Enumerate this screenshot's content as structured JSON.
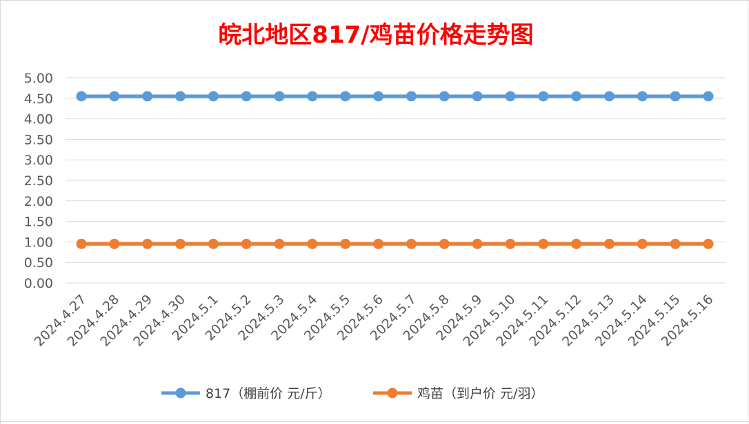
{
  "colors": {
    "title": "#ff0000",
    "series_817": "#5b9bd5",
    "series_chick": "#ed7d31",
    "gridline": "#d9d9d9",
    "axis_text": "#595959"
  },
  "chart_data": {
    "type": "line",
    "title": "皖北地区817/鸡苗价格走势图",
    "xlabel": "",
    "ylabel": "",
    "categories": [
      "2024.4.27",
      "2024.4.28",
      "2024.4.29",
      "2024.4.30",
      "2024.5.1",
      "2024.5.2",
      "2024.5.3",
      "2024.5.4",
      "2024.5.5",
      "2024.5.6",
      "2024.5.7",
      "2024.5.8",
      "2024.5.9",
      "2024.5.10",
      "2024.5.11",
      "2024.5.12",
      "2024.5.13",
      "2024.5.14",
      "2024.5.15",
      "2024.5.16"
    ],
    "y_ticks": [
      "0.00",
      "0.50",
      "1.00",
      "1.50",
      "2.00",
      "2.50",
      "3.00",
      "3.50",
      "4.00",
      "4.50",
      "5.00"
    ],
    "ylim": [
      0,
      5
    ],
    "grid": true,
    "legend_position": "bottom",
    "series": [
      {
        "name": "817（棚前价 元/斤）",
        "values": [
          4.55,
          4.55,
          4.55,
          4.55,
          4.55,
          4.55,
          4.55,
          4.55,
          4.55,
          4.55,
          4.55,
          4.55,
          4.55,
          4.55,
          4.55,
          4.55,
          4.55,
          4.55,
          4.55,
          4.55
        ]
      },
      {
        "name": "鸡苗（到户价 元/羽）",
        "values": [
          0.95,
          0.95,
          0.95,
          0.95,
          0.95,
          0.95,
          0.95,
          0.95,
          0.95,
          0.95,
          0.95,
          0.95,
          0.95,
          0.95,
          0.95,
          0.95,
          0.95,
          0.95,
          0.95,
          0.95
        ]
      }
    ]
  }
}
